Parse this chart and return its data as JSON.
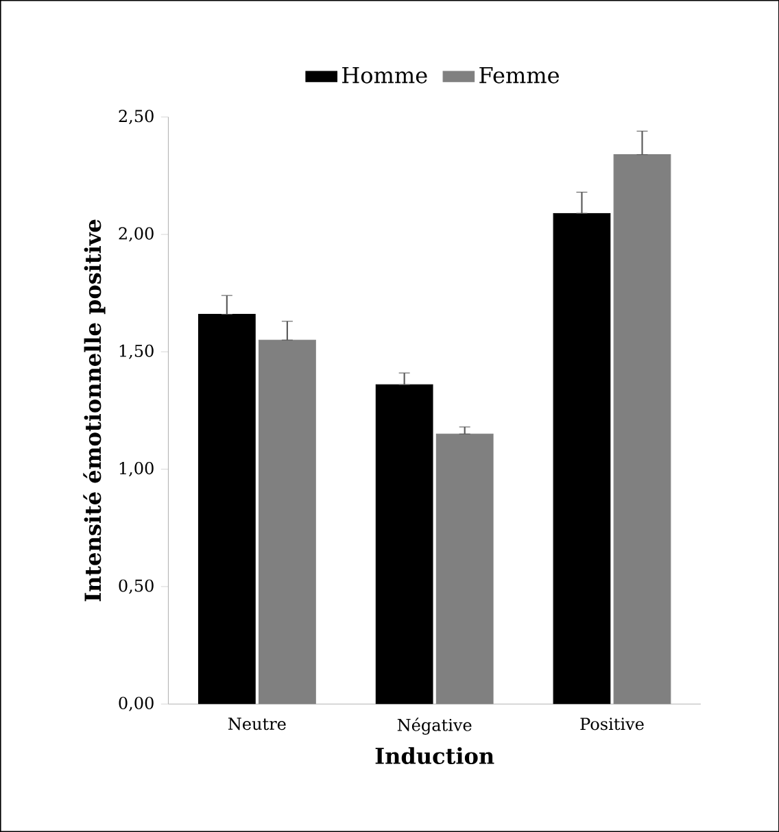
{
  "chart_data": {
    "type": "bar",
    "xlabel": "Induction",
    "ylabel": "Intensité émotionnelle positive",
    "categories": [
      "Neutre",
      "Négative",
      "Positive"
    ],
    "series": [
      {
        "name": "Homme",
        "color": "#000000",
        "values": [
          1.66,
          1.36,
          2.09
        ],
        "errors": [
          [
            1.66,
            1.74
          ],
          [
            1.36,
            1.41
          ],
          [
            2.09,
            2.18
          ]
        ]
      },
      {
        "name": "Femme",
        "color": "#808080",
        "values": [
          1.55,
          1.15,
          2.34
        ],
        "errors": [
          [
            1.55,
            1.63
          ],
          [
            1.15,
            1.18
          ],
          [
            2.34,
            2.44
          ]
        ]
      }
    ],
    "ylim": [
      0,
      2.5
    ],
    "yticks": [
      {
        "value": 0,
        "label": "0,00"
      },
      {
        "value": 0.5,
        "label": "0,50"
      },
      {
        "value": 1,
        "label": "1,00"
      },
      {
        "value": 1.5,
        "label": "1,50"
      },
      {
        "value": 2,
        "label": "2,00"
      },
      {
        "value": 2.5,
        "label": "2,50"
      }
    ],
    "grid": false,
    "legend": "top"
  }
}
